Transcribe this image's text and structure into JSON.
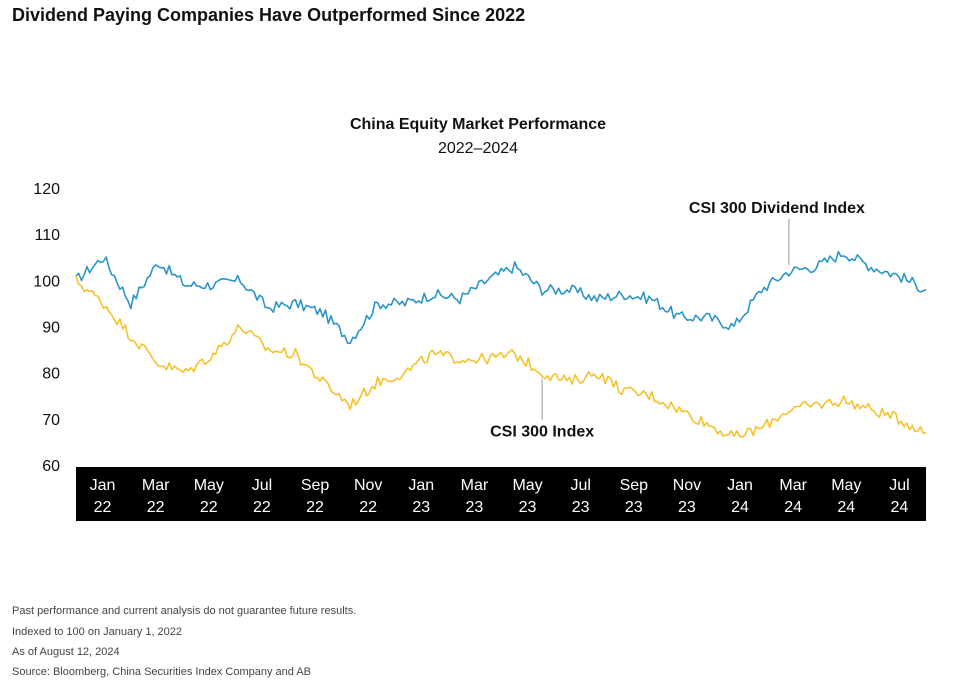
{
  "page": {
    "title": "Dividend Paying Companies Have Outperformed Since 2022"
  },
  "footnotes": [
    "Past performance and current analysis do not guarantee future results.",
    "Indexed to 100 on January 1, 2022",
    "As of August 12, 2024",
    "Source: Bloomberg, China Securities Index Company and AB"
  ],
  "chart_data": {
    "type": "line",
    "title": "China Equity Market Performance",
    "subtitle": "2022–2024",
    "xlabel": "",
    "ylabel": "",
    "ylim": [
      60,
      120
    ],
    "yticks": [
      "120",
      "110",
      "100",
      "90",
      "80",
      "70",
      "60"
    ],
    "xticks": [
      {
        "month": "Jan",
        "year": "22"
      },
      {
        "month": "Mar",
        "year": "22"
      },
      {
        "month": "May",
        "year": "22"
      },
      {
        "month": "Jul",
        "year": "22"
      },
      {
        "month": "Sep",
        "year": "22"
      },
      {
        "month": "Nov",
        "year": "22"
      },
      {
        "month": "Jan",
        "year": "23"
      },
      {
        "month": "Mar",
        "year": "23"
      },
      {
        "month": "May",
        "year": "23"
      },
      {
        "month": "Jul",
        "year": "23"
      },
      {
        "month": "Sep",
        "year": "23"
      },
      {
        "month": "Nov",
        "year": "23"
      },
      {
        "month": "Jan",
        "year": "24"
      },
      {
        "month": "Mar",
        "year": "24"
      },
      {
        "month": "May",
        "year": "24"
      },
      {
        "month": "Jul",
        "year": "24"
      }
    ],
    "x": [
      "2022-01",
      "2022-02",
      "2022-03",
      "2022-04",
      "2022-05",
      "2022-06",
      "2022-07",
      "2022-08",
      "2022-09",
      "2022-10",
      "2022-11",
      "2022-12",
      "2023-01",
      "2023-02",
      "2023-03",
      "2023-04",
      "2023-05",
      "2023-06",
      "2023-07",
      "2023-08",
      "2023-09",
      "2023-10",
      "2023-11",
      "2023-12",
      "2024-01",
      "2024-02",
      "2024-03",
      "2024-04",
      "2024-05",
      "2024-06",
      "2024-07",
      "2024-08"
    ],
    "series": [
      {
        "name": "CSI 300 Dividend Index",
        "color": "#2b95c8",
        "values": [
          100,
          105,
          95,
          104,
          99,
          99,
          100,
          94,
          95,
          93,
          87,
          95,
          95,
          97,
          96,
          100,
          103,
          98,
          98,
          96,
          97,
          96,
          92,
          92,
          90,
          98,
          102,
          103,
          106,
          103,
          101,
          98
        ]
      },
      {
        "name": "CSI 300 Index",
        "color": "#f4c22b",
        "values": [
          100,
          95,
          88,
          82,
          80,
          84,
          90,
          85,
          84,
          78,
          73,
          78,
          80,
          84,
          83,
          83,
          84,
          80,
          78,
          80,
          76,
          75,
          72,
          69,
          66,
          68,
          72,
          73,
          74,
          72,
          70,
          67
        ]
      }
    ],
    "annotations": [
      {
        "text": "CSI 300 Dividend Index",
        "series": 0,
        "x": "2024-03"
      },
      {
        "text": "CSI 300 Index",
        "series": 1,
        "x": "2023-06"
      }
    ],
    "grid": false,
    "legend": "none"
  }
}
